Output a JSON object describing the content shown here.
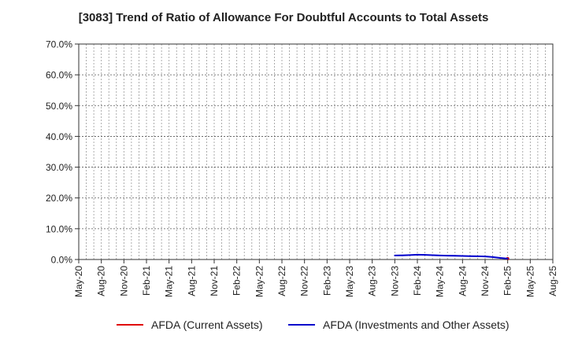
{
  "chart_data": {
    "type": "line",
    "title": "[3083]  Trend of Ratio of Allowance For Doubtful Accounts to Total Assets",
    "xlabel": "",
    "ylabel": "",
    "ylim": [
      0,
      70
    ],
    "y_ticks": [
      "0.0%",
      "10.0%",
      "20.0%",
      "30.0%",
      "40.0%",
      "50.0%",
      "60.0%",
      "70.0%"
    ],
    "x_ticks": [
      "May-20",
      "Aug-20",
      "Nov-20",
      "Feb-21",
      "May-21",
      "Aug-21",
      "Nov-21",
      "Feb-22",
      "May-22",
      "Aug-22",
      "Nov-22",
      "Feb-23",
      "May-23",
      "Aug-23",
      "Nov-23",
      "Feb-24",
      "May-24",
      "Aug-24",
      "Nov-24",
      "Feb-25",
      "May-25",
      "Aug-25"
    ],
    "grid": true,
    "legend_position": "bottom",
    "series": [
      {
        "name": "AFDA (Current Assets)",
        "color": "#e00000",
        "points": [
          [
            "Feb-25",
            0.3
          ]
        ]
      },
      {
        "name": "AFDA (Investments and Other Assets)",
        "color": "#0000cc",
        "points": [
          [
            "Nov-23",
            1.3
          ],
          [
            "Dec-23",
            1.35
          ],
          [
            "Jan-24",
            1.45
          ],
          [
            "Feb-24",
            1.55
          ],
          [
            "Mar-24",
            1.5
          ],
          [
            "Apr-24",
            1.4
          ],
          [
            "May-24",
            1.3
          ],
          [
            "Jun-24",
            1.25
          ],
          [
            "Jul-24",
            1.2
          ],
          [
            "Aug-24",
            1.15
          ],
          [
            "Sep-24",
            1.1
          ],
          [
            "Oct-24",
            1.05
          ],
          [
            "Nov-24",
            1.0
          ],
          [
            "Dec-24",
            0.8
          ],
          [
            "Jan-25",
            0.5
          ],
          [
            "Feb-25",
            0.3
          ]
        ]
      }
    ]
  }
}
